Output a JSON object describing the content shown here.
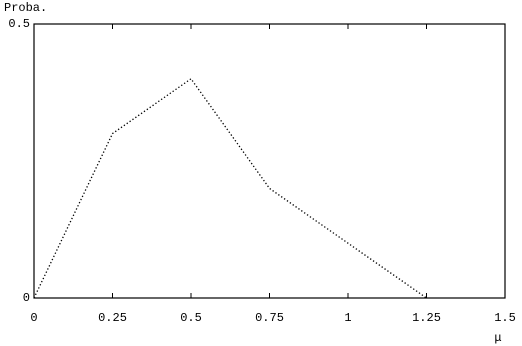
{
  "chart_data": {
    "type": "line",
    "y_label": "Proba.",
    "x_label": "μ",
    "x": [
      0,
      0.25,
      0.5,
      0.75,
      1,
      1.25
    ],
    "values": [
      0,
      0.3,
      0.4,
      0.2,
      0.1,
      0
    ],
    "color": "#000000",
    "xlim": [
      0,
      1.5
    ],
    "xticks": [
      0,
      0.25,
      0.5,
      0.75,
      1,
      1.25,
      1.5
    ],
    "ylim": [
      0,
      0.5
    ],
    "yticks": [
      0,
      0.5
    ]
  }
}
